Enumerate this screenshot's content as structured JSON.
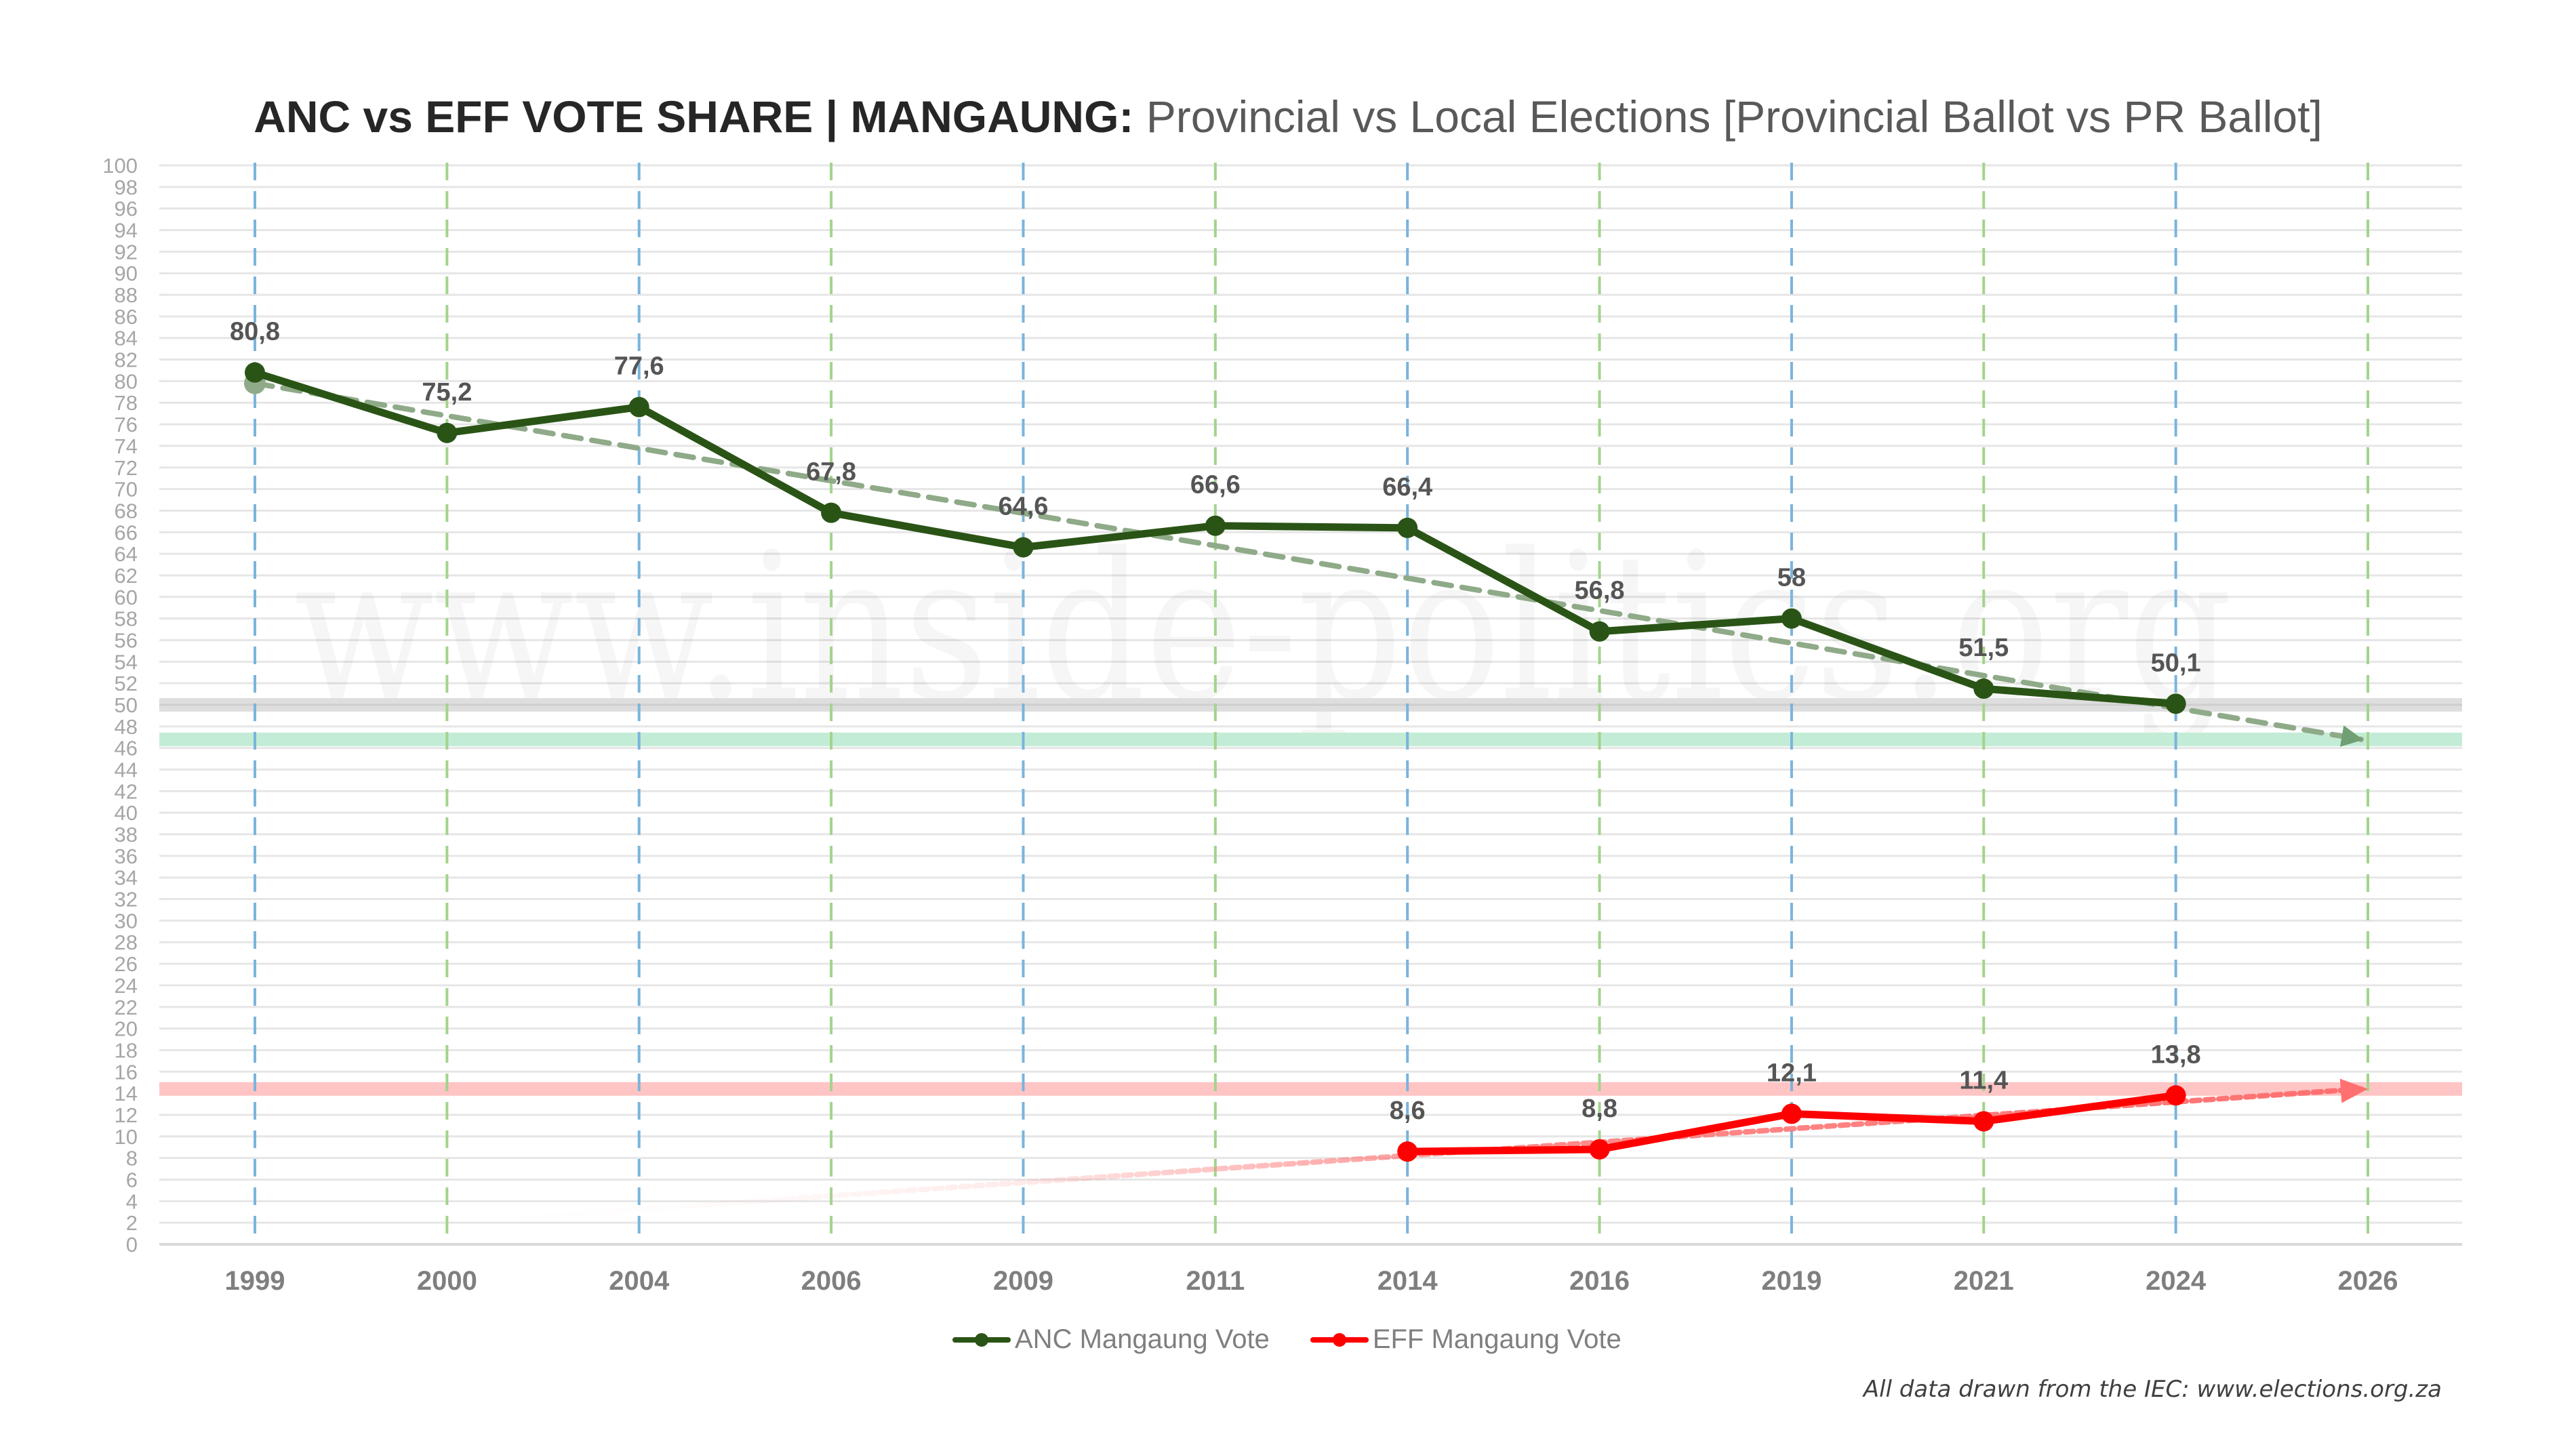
{
  "title": {
    "bold": "ANC vs EFF VOTE SHARE | MANGAUNG:",
    "light": "Provincial vs Local Elections [Provincial Ballot vs PR Ballot]"
  },
  "watermark": "www.inside-politics.org",
  "footer": "All data drawn from the IEC: www.elections.org.za",
  "colors": {
    "anc": "#2a5416",
    "anc_trend": "#8faa88",
    "eff": "#ff0000",
    "eff_trend": "#ff7070",
    "provincial_gridline": "#7ab4dc",
    "local_gridline": "#a3d48c",
    "band_50": "#dedede",
    "band_anc_projection": "#c3ecd6",
    "band_eff_projection": "#ffc4c4",
    "data_label": "#555555",
    "axis_label": "#a6a6a6",
    "x_label": "#7f7f7f"
  },
  "chart_data": {
    "type": "line",
    "title": "ANC vs EFF VOTE SHARE | MANGAUNG: Provincial vs Local Elections [Provincial Ballot vs PR Ballot]",
    "xlabel": "",
    "ylabel": "",
    "categories": [
      "1999",
      "2000",
      "2004",
      "2006",
      "2009",
      "2011",
      "2014",
      "2016",
      "2019",
      "2021",
      "2024",
      "2026"
    ],
    "category_types": [
      "provincial",
      "local",
      "provincial",
      "local",
      "provincial",
      "local",
      "provincial",
      "local",
      "provincial",
      "local",
      "provincial",
      "local"
    ],
    "ylim": [
      0,
      100
    ],
    "ytick_step": 2,
    "grid": true,
    "legend_position": "bottom",
    "series": [
      {
        "name": "ANC Mangaung Vote",
        "color": "#2a5416",
        "values": [
          80.8,
          75.2,
          77.6,
          67.8,
          64.6,
          66.6,
          66.4,
          56.8,
          58,
          51.5,
          50.1,
          null
        ],
        "labels": [
          "80,8",
          "75,2",
          "77,6",
          "67,8",
          "64,6",
          "66,6",
          "66,4",
          "56,8",
          "58",
          "51,5",
          "50,1",
          null
        ]
      },
      {
        "name": "EFF Mangaung Vote",
        "color": "#ff0000",
        "values": [
          null,
          null,
          null,
          null,
          null,
          null,
          8.6,
          8.8,
          12.1,
          11.4,
          13.8,
          null
        ],
        "labels": [
          null,
          null,
          null,
          null,
          null,
          null,
          "8,6",
          "8,8",
          "12,1",
          "11,4",
          "13,8",
          null
        ]
      }
    ],
    "trendlines": [
      {
        "series": "ANC Mangaung Vote",
        "style": "dashed-arrow",
        "from": {
          "x": "1999",
          "y": 79.8
        },
        "to": {
          "x": "2026",
          "y": 46.8
        }
      },
      {
        "series": "EFF Mangaung Vote",
        "style": "dotted-arrow",
        "from": {
          "x": "2000",
          "y": 2.0
        },
        "to": {
          "x": "2026",
          "y": 14.4
        }
      }
    ],
    "reference_bands": [
      {
        "name": "majority-line",
        "y": 50,
        "color": "#dedede"
      },
      {
        "name": "anc-projection-band",
        "y": 46.8,
        "color": "#c3ecd6"
      },
      {
        "name": "eff-projection-band",
        "y": 14.4,
        "color": "#ffc4c4"
      }
    ]
  }
}
